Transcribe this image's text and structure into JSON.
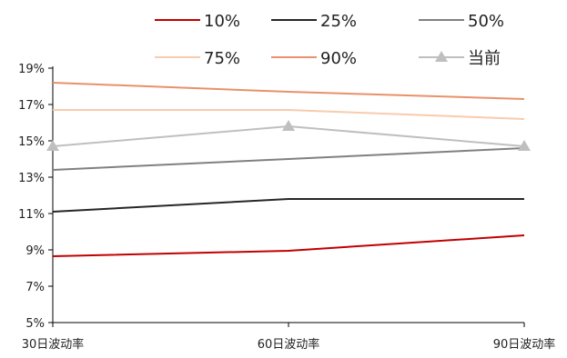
{
  "chart_data": {
    "type": "line",
    "categories": [
      "30日波动率",
      "60日波动率",
      "90日波动率"
    ],
    "ylim": [
      5,
      19
    ],
    "yticks": [
      5,
      7,
      9,
      11,
      13,
      15,
      17,
      19
    ],
    "ytick_labels": [
      "5%",
      "7%",
      "9%",
      "11%",
      "13%",
      "15%",
      "17%",
      "19%"
    ],
    "grid": false,
    "legend_placement": "top",
    "series": [
      {
        "name": "10%",
        "values": [
          8.65,
          8.95,
          9.8
        ],
        "color": "#c00000",
        "marker": "none"
      },
      {
        "name": "25%",
        "values": [
          11.1,
          11.8,
          11.8
        ],
        "color": "#262626",
        "marker": "none"
      },
      {
        "name": "50%",
        "values": [
          13.4,
          14.0,
          14.6
        ],
        "color": "#808080",
        "marker": "none"
      },
      {
        "name": "75%",
        "values": [
          16.7,
          16.7,
          16.2
        ],
        "color": "#f8cbad",
        "marker": "none"
      },
      {
        "name": "90%",
        "values": [
          18.2,
          17.7,
          17.3
        ],
        "color": "#e8916a",
        "marker": "none"
      },
      {
        "name": "当前",
        "values": [
          14.7,
          15.8,
          14.7
        ],
        "color": "#bfbfbf",
        "marker": "triangle"
      }
    ]
  }
}
